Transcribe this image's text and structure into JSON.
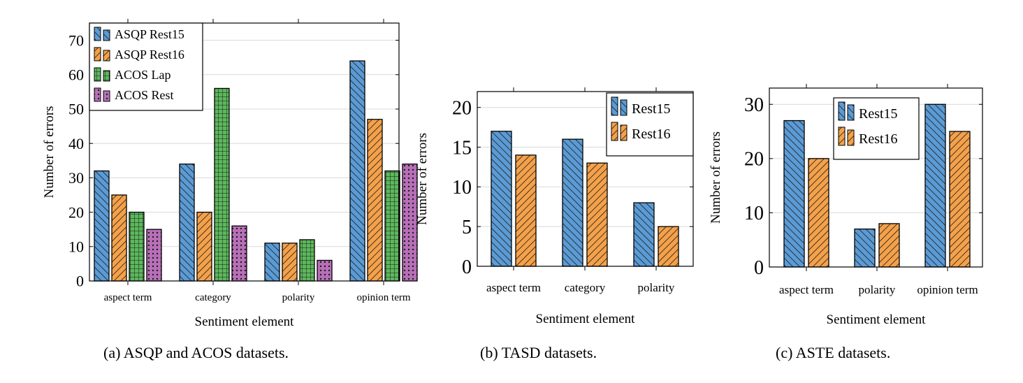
{
  "colors": {
    "blue": "#5b9bd5",
    "orange": "#f4a14a",
    "green": "#5cb85c",
    "purple": "#b86fb8",
    "grid": "#d9d9d9"
  },
  "legend_placement": [
    "top-left",
    "top-right",
    "top-center"
  ],
  "chart_data": [
    {
      "type": "bar",
      "categories": [
        "aspect term",
        "category",
        "polarity",
        "opinion term"
      ],
      "series": [
        {
          "name": "ASQP Rest15",
          "values": [
            32,
            34,
            11,
            64
          ],
          "color": "#5b9bd5",
          "pattern": "diagonal"
        },
        {
          "name": "ASQP Rest16",
          "values": [
            25,
            20,
            11,
            47
          ],
          "color": "#f4a14a",
          "pattern": "diagonal"
        },
        {
          "name": "ACOS Lap",
          "values": [
            20,
            56,
            12,
            32
          ],
          "color": "#5cb85c",
          "pattern": "grid"
        },
        {
          "name": "ACOS Rest",
          "values": [
            15,
            16,
            6,
            34
          ],
          "color": "#b86fb8",
          "pattern": "dots"
        }
      ],
      "xlabel": "Sentiment element",
      "ylabel": "Number of errors",
      "ylim": [
        0,
        75
      ],
      "yticks": [
        0,
        10,
        20,
        30,
        40,
        50,
        60,
        70
      ],
      "grid": true,
      "caption": "(a) ASQP and ACOS datasets."
    },
    {
      "type": "bar",
      "categories": [
        "aspect term",
        "category",
        "polarity"
      ],
      "series": [
        {
          "name": "Rest15",
          "values": [
            17,
            16,
            8
          ],
          "color": "#5b9bd5",
          "pattern": "diagonal"
        },
        {
          "name": "Rest16",
          "values": [
            14,
            13,
            5
          ],
          "color": "#f4a14a",
          "pattern": "diagonal"
        }
      ],
      "xlabel": "Sentiment element",
      "ylabel": "Number of errors",
      "ylim": [
        0,
        22
      ],
      "yticks": [
        0,
        5,
        10,
        15,
        20
      ],
      "grid": true,
      "caption": "(b) TASD datasets."
    },
    {
      "type": "bar",
      "categories": [
        "aspect term",
        "polarity",
        "opinion term"
      ],
      "series": [
        {
          "name": "Rest15",
          "values": [
            27,
            7,
            30
          ],
          "color": "#5b9bd5",
          "pattern": "diagonal"
        },
        {
          "name": "Rest16",
          "values": [
            20,
            8,
            25
          ],
          "color": "#f4a14a",
          "pattern": "diagonal"
        }
      ],
      "xlabel": "Sentiment element",
      "ylabel": "Number of errors",
      "ylim": [
        0,
        33
      ],
      "yticks": [
        0,
        10,
        20,
        30
      ],
      "grid": true,
      "caption": "(c) ASTE datasets."
    }
  ]
}
